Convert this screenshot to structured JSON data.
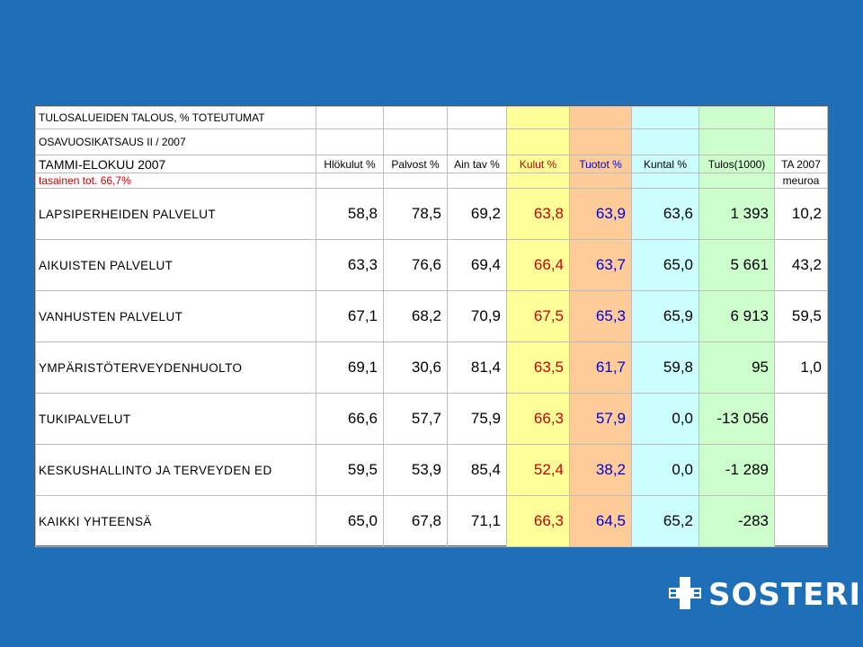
{
  "header": {
    "line1": "TULOSALUEIDEN TALOUS, % TOTEUTUMAT",
    "line2": "OSAVUOSIKATSAUS II / 2007",
    "line3": "TAMMI-ELOKUU 2007",
    "line4": "tasainen tot. 66,7%",
    "ta_label": "TA 2007",
    "ta_unit": "meuroa"
  },
  "columns": [
    "Hlökulut %",
    "Palvost %",
    "Ain tav %",
    "Kulut %",
    "Tuotot %",
    "Kuntal %",
    "Tulos(1000)"
  ],
  "rows": [
    {
      "label": "LAPSIPERHEIDEN PALVELUT",
      "hlokulut": "58,8",
      "palvost": "78,5",
      "aintav": "69,2",
      "kulut": "63,8",
      "tuotot": "63,9",
      "kuntal": "63,6",
      "tulos": "1 393",
      "ta": "10,2"
    },
    {
      "label": "AIKUISTEN PALVELUT",
      "hlokulut": "63,3",
      "palvost": "76,6",
      "aintav": "69,4",
      "kulut": "66,4",
      "tuotot": "63,7",
      "kuntal": "65,0",
      "tulos": "5 661",
      "ta": "43,2"
    },
    {
      "label": "VANHUSTEN PALVELUT",
      "hlokulut": "67,1",
      "palvost": "68,2",
      "aintav": "70,9",
      "kulut": "67,5",
      "tuotot": "65,3",
      "kuntal": "65,9",
      "tulos": "6 913",
      "ta": "59,5"
    },
    {
      "label": "YMPÄRISTÖTERVEYDENHUOLTO",
      "hlokulut": "69,1",
      "palvost": "30,6",
      "aintav": "81,4",
      "kulut": "63,5",
      "tuotot": "61,7",
      "kuntal": "59,8",
      "tulos": "95",
      "ta": "1,0"
    },
    {
      "label": "TUKIPALVELUT",
      "hlokulut": "66,6",
      "palvost": "57,7",
      "aintav": "75,9",
      "kulut": "66,3",
      "tuotot": "57,9",
      "kuntal": "0,0",
      "tulos": "-13 056",
      "ta": ""
    },
    {
      "label": "KESKUSHALLINTO JA TERVEYDEN ED",
      "hlokulut": "59,5",
      "palvost": "53,9",
      "aintav": "85,4",
      "kulut": "52,4",
      "tuotot": "38,2",
      "kuntal": "0,0",
      "tulos": "-1 289",
      "ta": ""
    },
    {
      "label": "KAIKKI YHTEENSÄ",
      "hlokulut": "65,0",
      "palvost": "67,8",
      "aintav": "71,1",
      "kulut": "66,3",
      "tuotot": "64,5",
      "kuntal": "65,2",
      "tulos": "-283",
      "ta": ""
    }
  ],
  "logo": {
    "text": "SOSTERI",
    "icon": "cross-logo-icon"
  },
  "colors": {
    "background": "#1f6fb8",
    "kulut": "#ffff99",
    "tuotot": "#ffcc99",
    "kuntal": "#ccffff",
    "tulos": "#ccffcc",
    "red": "#cc0000",
    "blue": "#0000cc"
  }
}
